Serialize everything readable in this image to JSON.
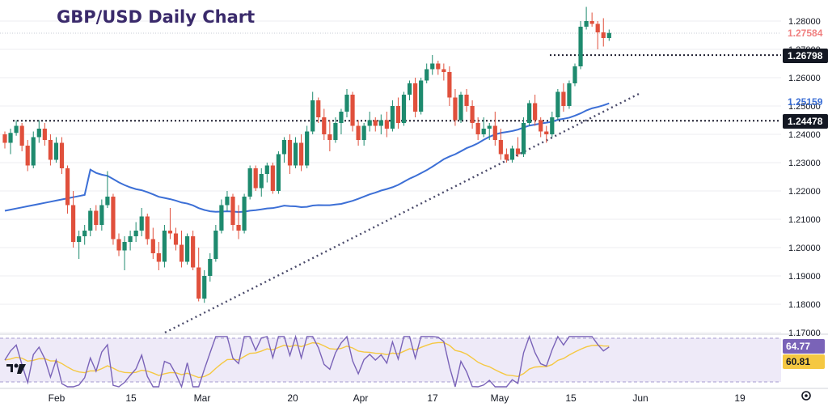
{
  "chart_data": {
    "type": "candlestick",
    "title": "GBP/USD Daily Chart",
    "y_ticks": [
      "1.28000",
      "1.27000",
      "1.26000",
      "1.25000",
      "1.24000",
      "1.23000",
      "1.22000",
      "1.21000",
      "1.20000",
      "1.19000",
      "1.18000",
      "1.17000"
    ],
    "x_ticks": [
      "Feb",
      "15",
      "Mar",
      "20",
      "Apr",
      "17",
      "May",
      "15",
      "Jun",
      "19"
    ],
    "ylim": [
      1.17,
      1.286
    ],
    "price_labels": [
      {
        "name": "last-price",
        "value": "1.27584",
        "color": "#f08080"
      },
      {
        "name": "resistance",
        "value": "1.26798",
        "color": "#131722"
      },
      {
        "name": "moving-average",
        "value": "1.25159",
        "color": "#3c6fd6"
      },
      {
        "name": "support",
        "value": "1.24478",
        "color": "#131722"
      }
    ],
    "rsi_labels": [
      {
        "name": "rsi",
        "value": "64.77",
        "color": "#7a63b8"
      },
      {
        "name": "rsi-signal",
        "value": "60.81",
        "color": "#f5c842"
      }
    ],
    "horizontal_levels": [
      1.26798,
      1.24478,
      1.27584
    ],
    "candles": [
      [
        1.24,
        1.241,
        1.235,
        1.237
      ],
      [
        1.237,
        1.242,
        1.233,
        1.2405
      ],
      [
        1.2405,
        1.245,
        1.2395,
        1.243
      ],
      [
        1.243,
        1.244,
        1.234,
        1.236
      ],
      [
        1.236,
        1.238,
        1.227,
        1.229
      ],
      [
        1.229,
        1.241,
        1.228,
        1.239
      ],
      [
        1.239,
        1.245,
        1.237,
        1.242
      ],
      [
        1.242,
        1.244,
        1.236,
        1.238
      ],
      [
        1.238,
        1.24,
        1.229,
        1.231
      ],
      [
        1.231,
        1.239,
        1.23,
        1.237
      ],
      [
        1.237,
        1.239,
        1.226,
        1.228
      ],
      [
        1.228,
        1.229,
        1.212,
        1.215
      ],
      [
        1.215,
        1.22,
        1.2,
        1.202
      ],
      [
        1.202,
        1.206,
        1.196,
        1.204
      ],
      [
        1.204,
        1.208,
        1.201,
        1.206
      ],
      [
        1.206,
        1.214,
        1.204,
        1.213
      ],
      [
        1.213,
        1.215,
        1.206,
        1.208
      ],
      [
        1.208,
        1.217,
        1.206,
        1.215
      ],
      [
        1.215,
        1.227,
        1.214,
        1.218
      ],
      [
        1.218,
        1.219,
        1.201,
        1.203
      ],
      [
        1.203,
        1.205,
        1.197,
        1.199
      ],
      [
        1.199,
        1.204,
        1.192,
        1.202
      ],
      [
        1.202,
        1.206,
        1.199,
        1.204
      ],
      [
        1.204,
        1.209,
        1.202,
        1.206
      ],
      [
        1.206,
        1.214,
        1.204,
        1.211
      ],
      [
        1.211,
        1.212,
        1.201,
        1.203
      ],
      [
        1.203,
        1.207,
        1.196,
        1.198
      ],
      [
        1.198,
        1.202,
        1.192,
        1.195
      ],
      [
        1.195,
        1.208,
        1.193,
        1.206
      ],
      [
        1.206,
        1.214,
        1.203,
        1.205
      ],
      [
        1.205,
        1.207,
        1.199,
        1.201
      ],
      [
        1.201,
        1.206,
        1.193,
        1.195
      ],
      [
        1.195,
        1.205,
        1.194,
        1.204
      ],
      [
        1.204,
        1.206,
        1.192,
        1.193
      ],
      [
        1.193,
        1.2,
        1.181,
        1.182
      ],
      [
        1.182,
        1.192,
        1.1805,
        1.19
      ],
      [
        1.19,
        1.198,
        1.188,
        1.196
      ],
      [
        1.196,
        1.208,
        1.195,
        1.206
      ],
      [
        1.206,
        1.217,
        1.205,
        1.215
      ],
      [
        1.215,
        1.22,
        1.213,
        1.218
      ],
      [
        1.218,
        1.219,
        1.206,
        1.208
      ],
      [
        1.208,
        1.215,
        1.203,
        1.206
      ],
      [
        1.206,
        1.219,
        1.205,
        1.218
      ],
      [
        1.218,
        1.229,
        1.217,
        1.228
      ],
      [
        1.228,
        1.229,
        1.22,
        1.221
      ],
      [
        1.221,
        1.228,
        1.218,
        1.226
      ],
      [
        1.226,
        1.23,
        1.223,
        1.229
      ],
      [
        1.229,
        1.23,
        1.219,
        1.22
      ],
      [
        1.22,
        1.234,
        1.219,
        1.233
      ],
      [
        1.233,
        1.239,
        1.23,
        1.238
      ],
      [
        1.238,
        1.24,
        1.226,
        1.229
      ],
      [
        1.229,
        1.239,
        1.228,
        1.237
      ],
      [
        1.237,
        1.24,
        1.227,
        1.229
      ],
      [
        1.229,
        1.243,
        1.228,
        1.241
      ],
      [
        1.241,
        1.255,
        1.24,
        1.252
      ],
      [
        1.252,
        1.253,
        1.244,
        1.246
      ],
      [
        1.246,
        1.249,
        1.238,
        1.24
      ],
      [
        1.24,
        1.245,
        1.234,
        1.238
      ],
      [
        1.238,
        1.246,
        1.237,
        1.244
      ],
      [
        1.244,
        1.249,
        1.24,
        1.248
      ],
      [
        1.248,
        1.256,
        1.246,
        1.254
      ],
      [
        1.254,
        1.255,
        1.241,
        1.243
      ],
      [
        1.243,
        1.245,
        1.236,
        1.238
      ],
      [
        1.238,
        1.244,
        1.236,
        1.243
      ],
      [
        1.243,
        1.248,
        1.241,
        1.245
      ],
      [
        1.245,
        1.246,
        1.241,
        1.243
      ],
      [
        1.243,
        1.247,
        1.24,
        1.245
      ],
      [
        1.245,
        1.248,
        1.239,
        1.242
      ],
      [
        1.242,
        1.252,
        1.241,
        1.25
      ],
      [
        1.25,
        1.253,
        1.242,
        1.244
      ],
      [
        1.244,
        1.255,
        1.243,
        1.254
      ],
      [
        1.254,
        1.259,
        1.252,
        1.258
      ],
      [
        1.258,
        1.26,
        1.246,
        1.248
      ],
      [
        1.248,
        1.26,
        1.247,
        1.259
      ],
      [
        1.259,
        1.265,
        1.258,
        1.263
      ],
      [
        1.263,
        1.268,
        1.261,
        1.265
      ],
      [
        1.265,
        1.266,
        1.261,
        1.263
      ],
      [
        1.263,
        1.265,
        1.259,
        1.262
      ],
      [
        1.262,
        1.264,
        1.25,
        1.253
      ],
      [
        1.253,
        1.256,
        1.243,
        1.245
      ],
      [
        1.245,
        1.255,
        1.244,
        1.254
      ],
      [
        1.254,
        1.256,
        1.248,
        1.25
      ],
      [
        1.25,
        1.252,
        1.242,
        1.244
      ],
      [
        1.244,
        1.246,
        1.238,
        1.24
      ],
      [
        1.24,
        1.246,
        1.239,
        1.242
      ],
      [
        1.242,
        1.244,
        1.238,
        1.243
      ],
      [
        1.243,
        1.248,
        1.236,
        1.238
      ],
      [
        1.238,
        1.242,
        1.231,
        1.233
      ],
      [
        1.233,
        1.235,
        1.23,
        1.231
      ],
      [
        1.231,
        1.236,
        1.23,
        1.235
      ],
      [
        1.235,
        1.239,
        1.232,
        1.233
      ],
      [
        1.233,
        1.246,
        1.232,
        1.244
      ],
      [
        1.244,
        1.252,
        1.243,
        1.251
      ],
      [
        1.251,
        1.254,
        1.243,
        1.245
      ],
      [
        1.245,
        1.246,
        1.239,
        1.241
      ],
      [
        1.241,
        1.243,
        1.237,
        1.24
      ],
      [
        1.24,
        1.248,
        1.239,
        1.246
      ],
      [
        1.246,
        1.256,
        1.245,
        1.255
      ],
      [
        1.255,
        1.258,
        1.248,
        1.25
      ],
      [
        1.25,
        1.259,
        1.249,
        1.258
      ],
      [
        1.258,
        1.265,
        1.257,
        1.264
      ],
      [
        1.264,
        1.28,
        1.263,
        1.278
      ],
      [
        1.278,
        1.285,
        1.277,
        1.28
      ],
      [
        1.28,
        1.283,
        1.278,
        1.279
      ],
      [
        1.279,
        1.28,
        1.27,
        1.276
      ],
      [
        1.276,
        1.281,
        1.271,
        1.274
      ],
      [
        1.274,
        1.277,
        1.273,
        1.2758
      ]
    ]
  },
  "toolbar": {
    "logo_icon": "tradingview-logo",
    "settings_icon": "gear-icon"
  }
}
